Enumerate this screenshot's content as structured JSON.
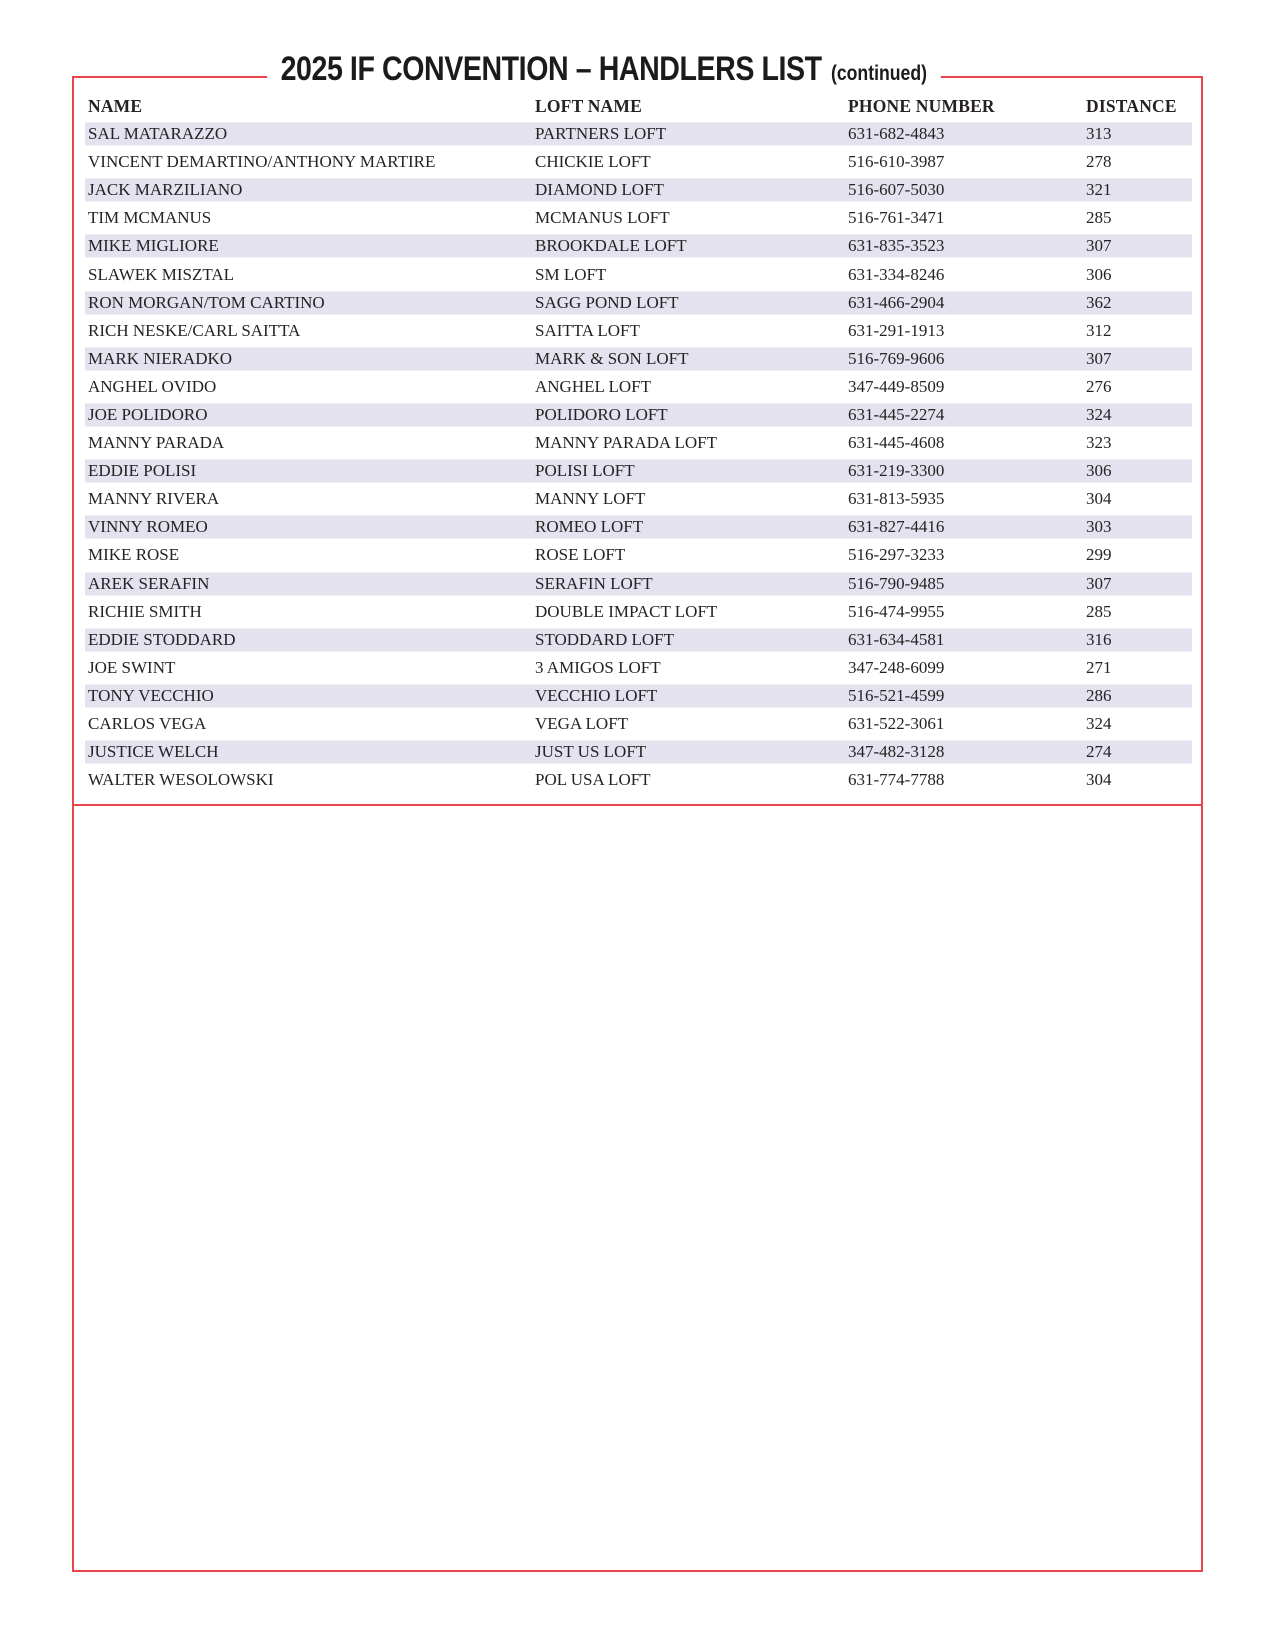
{
  "header": {
    "title": "2025 IF CONVENTION – HANDLERS LIST",
    "continued": "(continued)"
  },
  "colors": {
    "accent_red": "#e8464a",
    "row_stripe": "#e3e2ee"
  },
  "table": {
    "columns": [
      "NAME",
      "LOFT NAME",
      "PHONE NUMBER",
      "DISTANCE"
    ],
    "rows": [
      {
        "name": "SAL MATARAZZO",
        "loft": "PARTNERS LOFT",
        "phone": "631-682-4843",
        "distance": "313"
      },
      {
        "name": "VINCENT DEMARTINO/ANTHONY MARTIRE",
        "loft": "CHICKIE LOFT",
        "phone": "516-610-3987",
        "distance": "278"
      },
      {
        "name": "JACK MARZILIANO",
        "loft": "DIAMOND LOFT",
        "phone": "516-607-5030",
        "distance": "321"
      },
      {
        "name": "TIM MCMANUS",
        "loft": "MCMANUS LOFT",
        "phone": "516-761-3471",
        "distance": "285"
      },
      {
        "name": "MIKE MIGLIORE",
        "loft": "BROOKDALE LOFT",
        "phone": "631-835-3523",
        "distance": "307"
      },
      {
        "name": "SLAWEK MISZTAL",
        "loft": "SM LOFT",
        "phone": "631-334-8246",
        "distance": "306"
      },
      {
        "name": "RON MORGAN/TOM CARTINO",
        "loft": "SAGG POND LOFT",
        "phone": "631-466-2904",
        "distance": "362"
      },
      {
        "name": "RICH NESKE/CARL SAITTA",
        "loft": "SAITTA LOFT",
        "phone": "631-291-1913",
        "distance": "312"
      },
      {
        "name": "MARK NIERADKO",
        "loft": "MARK & SON LOFT",
        "phone": "516-769-9606",
        "distance": "307"
      },
      {
        "name": "ANGHEL OVIDO",
        "loft": "ANGHEL LOFT",
        "phone": "347-449-8509",
        "distance": "276"
      },
      {
        "name": "JOE POLIDORO",
        "loft": "POLIDORO LOFT",
        "phone": "631-445-2274",
        "distance": "324"
      },
      {
        "name": "MANNY PARADA",
        "loft": "MANNY PARADA LOFT",
        "phone": "631-445-4608",
        "distance": "323"
      },
      {
        "name": "EDDIE POLISI",
        "loft": "POLISI LOFT",
        "phone": "631-219-3300",
        "distance": "306"
      },
      {
        "name": "MANNY RIVERA",
        "loft": "MANNY LOFT",
        "phone": "631-813-5935",
        "distance": "304"
      },
      {
        "name": "VINNY ROMEO",
        "loft": "ROMEO LOFT",
        "phone": "631-827-4416",
        "distance": "303"
      },
      {
        "name": "MIKE ROSE",
        "loft": "ROSE LOFT",
        "phone": "516-297-3233",
        "distance": "299"
      },
      {
        "name": "AREK SERAFIN",
        "loft": "SERAFIN LOFT",
        "phone": "516-790-9485",
        "distance": "307"
      },
      {
        "name": "RICHIE SMITH",
        "loft": "DOUBLE IMPACT LOFT",
        "phone": "516-474-9955",
        "distance": "285"
      },
      {
        "name": "EDDIE STODDARD",
        "loft": "STODDARD LOFT",
        "phone": "631-634-4581",
        "distance": "316"
      },
      {
        "name": "JOE SWINT",
        "loft": "3 AMIGOS LOFT",
        "phone": "347-248-6099",
        "distance": "271"
      },
      {
        "name": "TONY VECCHIO",
        "loft": "VECCHIO LOFT",
        "phone": "516-521-4599",
        "distance": "286"
      },
      {
        "name": "CARLOS VEGA",
        "loft": "VEGA LOFT",
        "phone": "631-522-3061",
        "distance": "324"
      },
      {
        "name": "JUSTICE WELCH",
        "loft": "JUST US LOFT",
        "phone": "347-482-3128",
        "distance": "274"
      },
      {
        "name": "WALTER WESOLOWSKI",
        "loft": "POL USA LOFT",
        "phone": "631-774-7788",
        "distance": "304"
      }
    ]
  }
}
